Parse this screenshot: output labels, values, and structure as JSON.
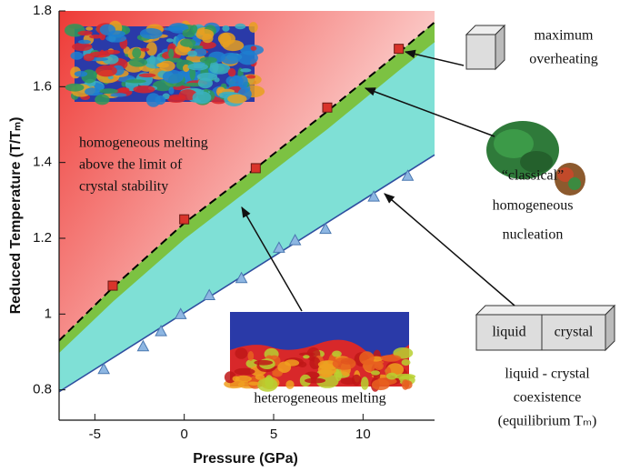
{
  "chart_data": {
    "type": "line",
    "x_label": "Pressure (GPa)",
    "y_label": "Reduced Temperature (T/Tₘ)",
    "xlim": [
      -7,
      14
    ],
    "ylim": [
      0.72,
      1.8
    ],
    "xticks": [
      -5,
      0,
      5,
      10
    ],
    "yticks": [
      0.8,
      1,
      1.2,
      1.4,
      1.6,
      1.8
    ],
    "series": [
      {
        "color": "#000000",
        "dash": true,
        "fill": "#ee3a36",
        "x": [
          -7,
          -4,
          0,
          4,
          8,
          12,
          14
        ],
        "values": [
          0.93,
          1.07,
          1.24,
          1.385,
          1.535,
          1.69,
          1.77
        ]
      },
      {
        "color": "#7cc242",
        "fill": "#7cc242",
        "x": [
          -7,
          -4,
          0,
          4,
          8,
          12,
          14
        ],
        "values": [
          0.9,
          1.035,
          1.2,
          1.345,
          1.49,
          1.645,
          1.72
        ]
      },
      {
        "color": "#2f4fa0",
        "fill": "#7fe0d6",
        "x": [
          -7,
          14
        ],
        "values": [
          0.795,
          1.42
        ]
      },
      {
        "color": "#d9342b",
        "marker": "square",
        "x": [
          -4,
          0,
          4,
          8,
          12
        ],
        "values": [
          1.075,
          1.25,
          1.385,
          1.545,
          1.7
        ]
      },
      {
        "color": "#8db6e2",
        "marker": "triangle",
        "x": [
          -4.5,
          -2.3,
          -1.3,
          -0.2,
          1.4,
          3.2,
          5.3,
          6.2,
          7.9,
          10.6,
          12.5
        ],
        "values": [
          0.855,
          0.915,
          0.955,
          1.0,
          1.05,
          1.095,
          1.175,
          1.195,
          1.225,
          1.31,
          1.365
        ]
      }
    ],
    "annotations": {
      "homogeneous": [
        "homogeneous melting",
        "above the limit of",
        "crystal stability"
      ],
      "heterogeneous": "heterogeneous melting",
      "overheating": [
        "maximum",
        "overheating"
      ],
      "nucleation": [
        "“classical”",
        "homogeneous",
        "nucleation"
      ],
      "coexistence": [
        "liquid - crystal",
        "coexistence",
        "(equilibrium Tₘ)"
      ],
      "liquid": "liquid",
      "crystal": "crystal"
    }
  }
}
